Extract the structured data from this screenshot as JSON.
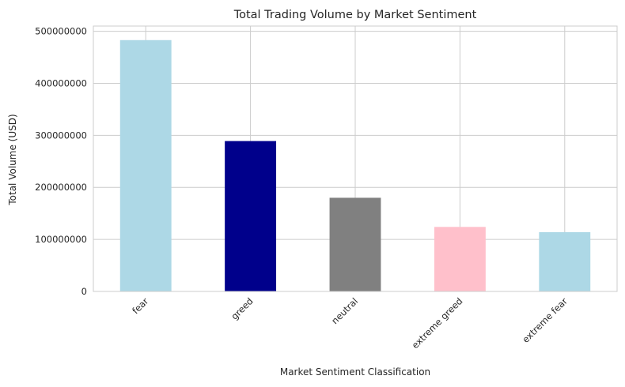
{
  "chart_data": {
    "type": "bar",
    "title": "Total Trading Volume by Market Sentiment",
    "xlabel": "Market Sentiment Classification",
    "ylabel": "Total Volume (USD)",
    "categories": [
      "fear",
      "greed",
      "neutral",
      "extreme greed",
      "extreme fear"
    ],
    "values": [
      483000000,
      289000000,
      180000000,
      124000000,
      114000000
    ],
    "colors": [
      "#add8e6",
      "#00008b",
      "#808080",
      "#ffc0cb",
      "#add8e6"
    ],
    "ylim": [
      0,
      510000000
    ],
    "yticks": [
      0,
      100000000,
      200000000,
      300000000,
      400000000,
      500000000
    ],
    "ytick_labels": [
      "0",
      "100000000",
      "200000000",
      "300000000",
      "400000000",
      "500000000"
    ],
    "grid": true,
    "legend": "none"
  }
}
